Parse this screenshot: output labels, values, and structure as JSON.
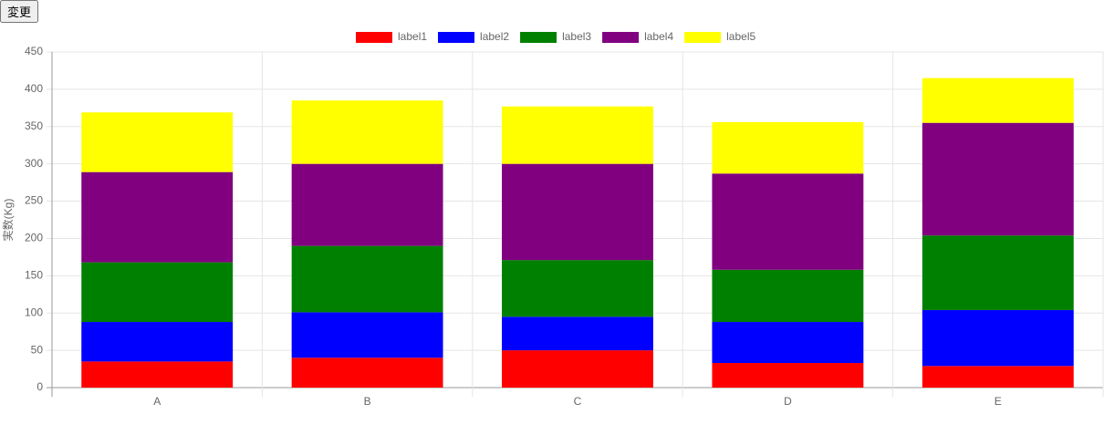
{
  "button": "変更",
  "chart_data": {
    "type": "stacked_bar",
    "ylabel": "実数(Kg)",
    "categories": [
      "A",
      "B",
      "C",
      "D",
      "E"
    ],
    "series": [
      {
        "name": "label1",
        "color": "#ff0000",
        "values": [
          35,
          40,
          50,
          33,
          29
        ]
      },
      {
        "name": "label2",
        "color": "#0000ff",
        "values": [
          53,
          61,
          45,
          55,
          75
        ]
      },
      {
        "name": "label3",
        "color": "#008000",
        "values": [
          80,
          89,
          76,
          70,
          100
        ]
      },
      {
        "name": "label4",
        "color": "#800080",
        "values": [
          121,
          110,
          129,
          129,
          151
        ]
      },
      {
        "name": "label5",
        "color": "#ffff00",
        "values": [
          80,
          85,
          77,
          69,
          60
        ]
      }
    ],
    "ylim": [
      0,
      450
    ],
    "yticks": [
      0,
      50,
      100,
      150,
      200,
      250,
      300,
      350,
      400,
      450
    ],
    "grid": true,
    "legend": "top"
  }
}
